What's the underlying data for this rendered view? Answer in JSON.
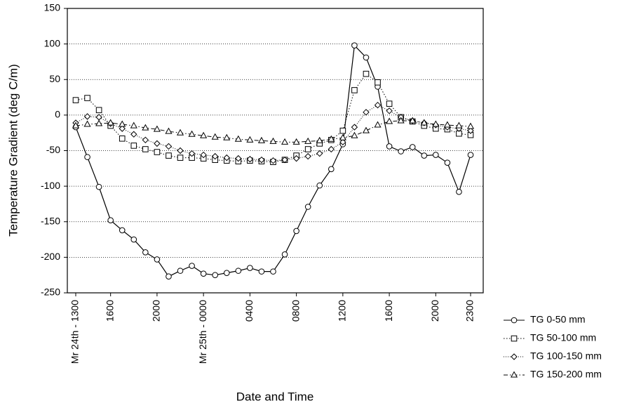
{
  "chart_data": {
    "type": "line",
    "xlabel": "Date and Time",
    "ylabel": "Temperature Gradient (deg C/m)",
    "categories": [
      "Mr 24th - 1300",
      null,
      null,
      "1600",
      null,
      null,
      null,
      "2000",
      null,
      null,
      null,
      "Mr 25th - 0000",
      null,
      null,
      null,
      "0400",
      null,
      null,
      null,
      "0800",
      null,
      null,
      null,
      "1200",
      null,
      null,
      null,
      "1600",
      null,
      null,
      null,
      "2000",
      null,
      null,
      "2300"
    ],
    "ylim": [
      -250,
      150
    ],
    "yticks": [
      -250,
      -200,
      -150,
      -100,
      -50,
      0,
      50,
      100,
      150
    ],
    "grid": true,
    "legend": "bottom-right",
    "series": [
      {
        "name": "TG 0-50 mm",
        "color": "#000000",
        "marker": "circle",
        "line_style": "solid",
        "values": [
          -17,
          -59,
          -101,
          -148,
          -162,
          -175,
          -193,
          -203,
          -227,
          -219,
          -212,
          -223,
          -225,
          -222,
          -219,
          -215,
          -220,
          -220,
          -196,
          -163,
          -129,
          -99,
          -76,
          -41,
          98,
          81,
          40,
          -44,
          -51,
          -45,
          -57,
          -56,
          -67,
          -108,
          -56
        ]
      },
      {
        "name": "TG 50-100 mm",
        "color": "#000000",
        "marker": "square",
        "line_style": "dotted",
        "values": [
          21,
          24,
          7,
          -15,
          -33,
          -43,
          -48,
          -52,
          -57,
          -60,
          -60,
          -61,
          -63,
          -64,
          -65,
          -64,
          -65,
          -66,
          -63,
          -57,
          -48,
          -40,
          -35,
          -22,
          35,
          58,
          46,
          16,
          -3,
          -9,
          -15,
          -19,
          -20,
          -26,
          -28
        ]
      },
      {
        "name": "TG 100-150 mm",
        "color": "#000000",
        "marker": "diamond",
        "line_style": "fine-dotted",
        "values": [
          -11,
          -2,
          -3,
          -12,
          -19,
          -27,
          -35,
          -40,
          -44,
          -50,
          -54,
          -56,
          -58,
          -60,
          -61,
          -62,
          -63,
          -64,
          -63,
          -61,
          -58,
          -54,
          -48,
          -38,
          -17,
          4,
          14,
          6,
          -3,
          -8,
          -11,
          -14,
          -17,
          -19,
          -22
        ]
      },
      {
        "name": "TG 150-200 mm",
        "color": "#000000",
        "marker": "triangle",
        "line_style": "dash-dot",
        "values": [
          -15,
          -13,
          -12,
          -11,
          -13,
          -15,
          -18,
          -20,
          -23,
          -25,
          -27,
          -29,
          -31,
          -32,
          -34,
          -35,
          -36,
          -37,
          -38,
          -38,
          -37,
          -36,
          -34,
          -32,
          -29,
          -22,
          -14,
          -9,
          -8,
          -8,
          -11,
          -13,
          -14,
          -15,
          -16
        ]
      }
    ]
  }
}
